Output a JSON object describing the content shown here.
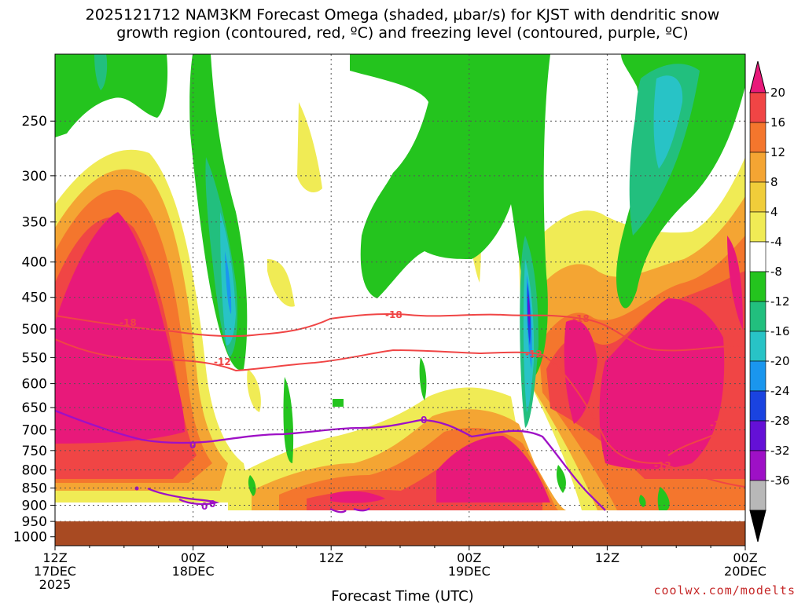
{
  "chart_data": {
    "type": "heatmap",
    "title_line1": "2025121712 NAM3KM Forecast Omega (shaded, µbar/s) for KJST with dendritic snow",
    "title_line2": "growth region (contoured, red, ºC) and freezing level (contoured, purple, ºC)",
    "xlabel": "Forecast Time (UTC)",
    "credit": "coolwx.com/modelts",
    "y_ticks": [
      "250",
      "300",
      "350",
      "400",
      "450",
      "500",
      "550",
      "600",
      "650",
      "700",
      "750",
      "800",
      "850",
      "900",
      "950",
      "1000"
    ],
    "y_values": [
      250,
      300,
      350,
      400,
      450,
      500,
      550,
      600,
      650,
      700,
      750,
      800,
      850,
      900,
      950,
      1000
    ],
    "y_scale": "log-pressure",
    "ylim": [
      200,
      1030
    ],
    "x_ticks": [
      {
        "hour": 0,
        "line1": "12Z",
        "line2": "17DEC",
        "line3": "2025"
      },
      {
        "hour": 12,
        "line1": "00Z",
        "line2": "18DEC",
        "line3": ""
      },
      {
        "hour": 24,
        "line1": "12Z",
        "line2": "",
        "line3": ""
      },
      {
        "hour": 36,
        "line1": "00Z",
        "line2": "19DEC",
        "line3": ""
      },
      {
        "hour": 48,
        "line1": "12Z",
        "line2": "",
        "line3": ""
      },
      {
        "hour": 60,
        "line1": "00Z",
        "line2": "20DEC",
        "line3": ""
      }
    ],
    "xlim": [
      0,
      60
    ],
    "grid": true,
    "colorbar": {
      "labels": [
        "20",
        "16",
        "12",
        "8",
        "4",
        "-4",
        "-8",
        "-12",
        "-16",
        "-20",
        "-24",
        "-28",
        "-32",
        "-36"
      ],
      "colors": [
        "#e8197a",
        "#f04545",
        "#f4762d",
        "#f4a533",
        "#f0cd3a",
        "#f0eb55",
        "#ffffff",
        "#24c41e",
        "#22bf7e",
        "#28c3c6",
        "#1a96ee",
        "#1a43e0",
        "#6410d6",
        "#9e10c6",
        "#b8b8b8",
        "#000000"
      ]
    },
    "contour_labels": {
      "dgz": [
        "-18",
        "-12",
        "-18",
        "-12",
        "-18",
        "-12",
        "-12"
      ],
      "freezing": [
        "0",
        "0",
        "0",
        "0"
      ]
    },
    "ground_pressure": 935
  }
}
